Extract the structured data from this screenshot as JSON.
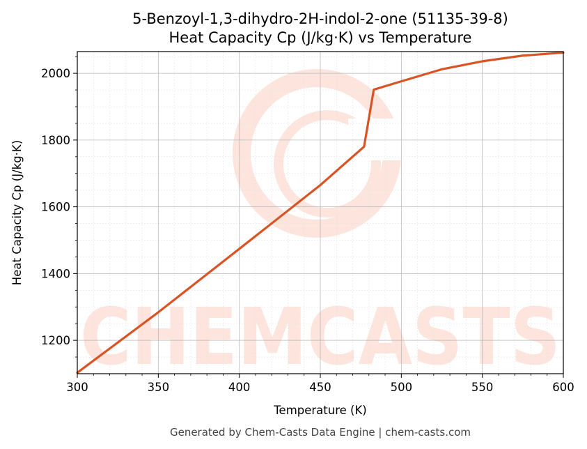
{
  "chart_data": {
    "type": "line",
    "title": "5-Benzoyl-1,3-dihydro-2H-indol-2-one (51135-39-8)",
    "subtitle": "Heat Capacity Cp (J/kg·K) vs Temperature",
    "xlabel": "Temperature (K)",
    "ylabel": "Heat Capacity Cp (J/kg·K)",
    "xlim": [
      300,
      600
    ],
    "ylim": [
      1100,
      2065
    ],
    "xticks": [
      300,
      350,
      400,
      450,
      500,
      550,
      600
    ],
    "yticks": [
      1200,
      1400,
      1600,
      1800,
      2000
    ],
    "grid": true,
    "line_color": "#d95424",
    "series": [
      {
        "x": [
          300,
          350,
          400,
          450,
          477,
          483,
          500,
          525,
          550,
          575,
          600
        ],
        "values": [
          1103,
          1284,
          1474,
          1665,
          1780,
          1951,
          1976,
          2012,
          2036,
          2053,
          2062
        ]
      }
    ]
  },
  "watermark": {
    "text": "CHEMCASTS",
    "color": "#fde0d8"
  },
  "footer": "Generated by Chem-Casts Data Engine | chem-casts.com"
}
